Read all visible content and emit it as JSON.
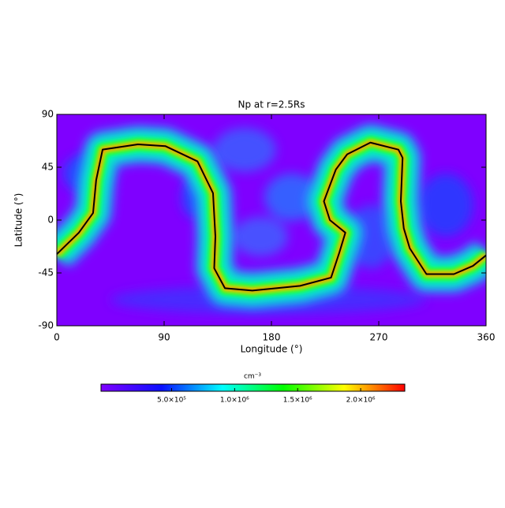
{
  "chart_data": {
    "type": "line",
    "title": "Np at r=2.5Rs",
    "x_label": "Longitude (°)",
    "y_label": "Latitude (°)",
    "x": [
      0,
      18.5,
      30.4,
      33,
      38.4,
      68,
      91,
      118,
      131,
      133,
      132,
      141,
      164,
      204,
      230,
      237,
      242,
      229,
      224,
      234,
      243.5,
      263,
      286.5,
      290,
      288.5,
      291,
      296,
      310,
      333,
      349,
      360
    ],
    "values": [
      -29,
      -10.7,
      6,
      34,
      60,
      64.5,
      63,
      50,
      23,
      -14,
      -41,
      -58,
      -60,
      -56,
      -49,
      -27.5,
      -10.7,
      0,
      16,
      43,
      56,
      66,
      60,
      53,
      16,
      -7,
      -24,
      -46,
      -46,
      -39,
      -30
    ],
    "color": "#000000",
    "xlim": [
      0,
      360
    ],
    "xticks": [
      0,
      90,
      180,
      270,
      360
    ],
    "ylim": [
      -90,
      90
    ],
    "yticks": [
      -90,
      -45,
      0,
      45,
      90
    ],
    "colorbar": {
      "title": "cm⁻³",
      "lim": [
        -60000,
        2350000
      ],
      "ticks": [
        {
          "value": 500000,
          "label": "5.0×10⁵"
        },
        {
          "value": 1000000,
          "label": "1.0×10⁶"
        },
        {
          "value": 1500000,
          "label": "1.5×10⁶"
        },
        {
          "value": 2000000,
          "label": "2.0×10⁶"
        }
      ]
    }
  }
}
